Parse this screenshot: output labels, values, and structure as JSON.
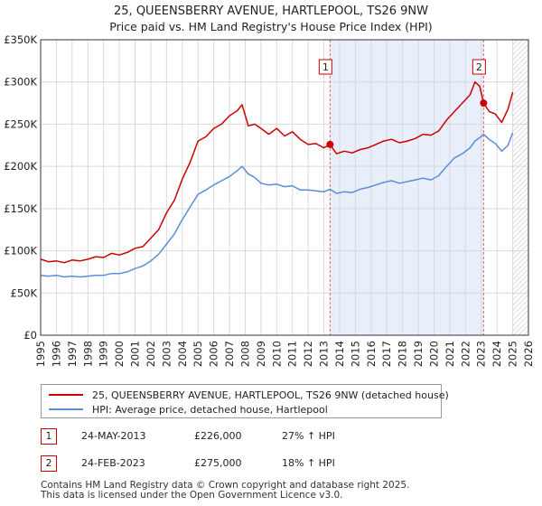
{
  "chart_data": {
    "type": "line",
    "title": "25, QUEENSBERRY AVENUE, HARTLEPOOL, TS26 9NW",
    "subtitle": "Price paid vs. HM Land Registry's House Price Index (HPI)",
    "xlabel": "",
    "ylabel": "",
    "xlim": [
      1995,
      2026
    ],
    "ylim": [
      0,
      350000
    ],
    "grid": true,
    "y_ticks": [
      0,
      50000,
      100000,
      150000,
      200000,
      250000,
      300000,
      350000
    ],
    "y_tick_labels": [
      "£0",
      "£50K",
      "£100K",
      "£150K",
      "£200K",
      "£250K",
      "£300K",
      "£350K"
    ],
    "x_ticks": [
      1995,
      1996,
      1997,
      1998,
      1999,
      2000,
      2001,
      2002,
      2003,
      2004,
      2005,
      2006,
      2007,
      2008,
      2009,
      2010,
      2011,
      2012,
      2013,
      2014,
      2015,
      2016,
      2017,
      2018,
      2019,
      2020,
      2021,
      2022,
      2023,
      2024,
      2025,
      2026
    ],
    "x_tick_labels": [
      "1995",
      "1996",
      "1997",
      "1998",
      "1999",
      "2000",
      "2001",
      "2002",
      "2003",
      "2004",
      "2005",
      "2006",
      "2007",
      "2008",
      "2009",
      "2010",
      "2011",
      "2012",
      "2013",
      "2014",
      "2015",
      "2016",
      "2017",
      "2018",
      "2019",
      "2020",
      "2021",
      "2022",
      "2023",
      "2024",
      "2025",
      "2026"
    ],
    "shaded_ranges": [
      [
        2013.39,
        2023.15
      ]
    ],
    "hatched_range": [
      2025.0,
      2026
    ],
    "series": [
      {
        "name": "25, QUEENSBERRY AVENUE, HARTLEPOOL, TS26 9NW (detached house)",
        "color": "#cc0000",
        "x": [
          1995.0,
          1995.5,
          1996.0,
          1996.5,
          1997.0,
          1997.5,
          1998.0,
          1998.5,
          1999.0,
          1999.5,
          2000.0,
          2000.5,
          2001.0,
          2001.5,
          2002.0,
          2002.5,
          2003.0,
          2003.5,
          2004.0,
          2004.5,
          2005.0,
          2005.5,
          2006.0,
          2006.5,
          2007.0,
          2007.5,
          2007.8,
          2008.2,
          2008.6,
          2009.0,
          2009.5,
          2010.0,
          2010.5,
          2011.0,
          2011.5,
          2012.0,
          2012.5,
          2013.0,
          2013.39,
          2013.8,
          2014.3,
          2014.8,
          2015.3,
          2015.8,
          2016.3,
          2016.8,
          2017.3,
          2017.8,
          2018.3,
          2018.8,
          2019.3,
          2019.8,
          2020.3,
          2020.8,
          2021.3,
          2021.8,
          2022.3,
          2022.6,
          2022.9,
          2023.15,
          2023.5,
          2023.9,
          2024.3,
          2024.7,
          2025.0
        ],
        "y": [
          90000,
          87000,
          88000,
          86000,
          89000,
          88000,
          90000,
          93000,
          92000,
          97000,
          95000,
          98000,
          103000,
          105000,
          115000,
          125000,
          145000,
          160000,
          185000,
          205000,
          230000,
          235000,
          245000,
          250000,
          260000,
          266000,
          273000,
          248000,
          250000,
          245000,
          238000,
          245000,
          236000,
          241000,
          232000,
          226000,
          227000,
          222000,
          226000,
          215000,
          218000,
          216000,
          220000,
          222000,
          226000,
          230000,
          232000,
          228000,
          230000,
          233000,
          238000,
          237000,
          242000,
          255000,
          265000,
          275000,
          285000,
          300000,
          295000,
          275000,
          265000,
          262000,
          252000,
          268000,
          288000
        ]
      },
      {
        "name": "HPI: Average price, detached house, Hartlepool",
        "color": "#5b8ed6",
        "x": [
          1995.0,
          1995.5,
          1996.0,
          1996.5,
          1997.0,
          1997.5,
          1998.0,
          1998.5,
          1999.0,
          1999.5,
          2000.0,
          2000.5,
          2001.0,
          2001.5,
          2002.0,
          2002.5,
          2003.0,
          2003.5,
          2004.0,
          2004.5,
          2005.0,
          2005.5,
          2006.0,
          2006.5,
          2007.0,
          2007.5,
          2007.8,
          2008.2,
          2008.6,
          2009.0,
          2009.5,
          2010.0,
          2010.5,
          2011.0,
          2011.5,
          2012.0,
          2012.5,
          2013.0,
          2013.39,
          2013.8,
          2014.3,
          2014.8,
          2015.3,
          2015.8,
          2016.3,
          2016.8,
          2017.3,
          2017.8,
          2018.3,
          2018.8,
          2019.3,
          2019.8,
          2020.3,
          2020.8,
          2021.3,
          2021.8,
          2022.3,
          2022.6,
          2022.9,
          2023.15,
          2023.5,
          2023.9,
          2024.3,
          2024.7,
          2025.0
        ],
        "y": [
          71000,
          70000,
          71000,
          69000,
          70000,
          69000,
          70000,
          71000,
          71000,
          73000,
          73000,
          75000,
          79000,
          82000,
          88000,
          96000,
          108000,
          120000,
          137000,
          152000,
          167000,
          172000,
          178000,
          183000,
          188000,
          195000,
          200000,
          191000,
          187000,
          180000,
          178000,
          179000,
          176000,
          177000,
          172000,
          172000,
          171000,
          170000,
          173000,
          168000,
          170000,
          169000,
          173000,
          175000,
          178000,
          181000,
          183000,
          180000,
          182000,
          184000,
          186000,
          184000,
          189000,
          200000,
          210000,
          215000,
          222000,
          230000,
          234000,
          238000,
          232000,
          227000,
          218000,
          225000,
          240000
        ]
      }
    ],
    "transactions": [
      {
        "id": "1",
        "date": "24-MAY-2013",
        "price": "£226,000",
        "hpi": "27% ↑ HPI",
        "x": 2013.39,
        "y": 226000
      },
      {
        "id": "2",
        "date": "24-FEB-2023",
        "price": "£275,000",
        "hpi": "18% ↑ HPI",
        "x": 2023.15,
        "y": 275000
      }
    ]
  },
  "legend": {
    "items": [
      {
        "label": "25, QUEENSBERRY AVENUE, HARTLEPOOL, TS26 9NW (detached house)",
        "color": "#cc0000"
      },
      {
        "label": "HPI: Average price, detached house, Hartlepool",
        "color": "#5b8ed6"
      }
    ]
  },
  "footer": {
    "line1": "Contains HM Land Registry data © Crown copyright and database right 2025.",
    "line2": "This data is licensed under the Open Government Licence v3.0."
  }
}
